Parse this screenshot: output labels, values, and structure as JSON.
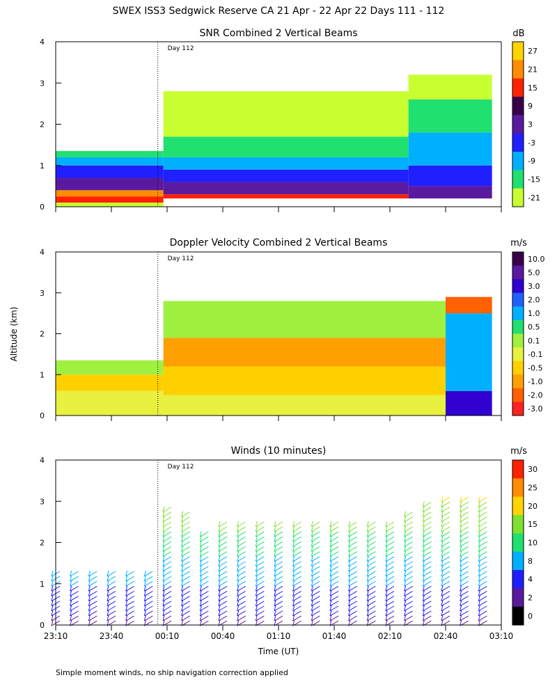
{
  "figure": {
    "title": "SWEX ISS3 Sedgwick Reserve CA  21 Apr - 22 Apr 22 Days 111 - 112",
    "shared_ylabel": "Altitude (km)",
    "shared_xlabel": "Time (UT)",
    "footnote": "Simple moment winds, no ship navigation correction applied",
    "day_marker": "Day 112"
  },
  "chart_data": [
    {
      "type": "heatmap",
      "title": "SNR Combined 2 Vertical Beams",
      "ylabel": "Altitude (km)",
      "ylim": [
        0,
        4
      ],
      "yticks": [
        "0",
        "1",
        "2",
        "3",
        "4"
      ],
      "x_time_range": [
        "23:10",
        "03:10"
      ],
      "colorbar": {
        "unit": "dB",
        "ticks": [
          "27",
          "21",
          "15",
          "9",
          "3",
          "-3",
          "-9",
          "-15",
          "-21"
        ],
        "colors": [
          "#ffd400",
          "#ff8c00",
          "#ff2000",
          "#3a004a",
          "#5a1aa0",
          "#2020ff",
          "#00b0ff",
          "#20e070",
          "#c8ff30"
        ]
      },
      "regions": [
        {
          "t_start": "23:10",
          "t_end": "00:08",
          "top_km": 1.35,
          "layers": [
            [
              "#c8ff30",
              0.0,
              0.1
            ],
            [
              "#ff2000",
              0.1,
              0.25
            ],
            [
              "#ff8c00",
              0.25,
              0.4
            ],
            [
              "#5a1aa0",
              0.4,
              0.7
            ],
            [
              "#2020ff",
              0.7,
              1.0
            ],
            [
              "#00b0ff",
              1.0,
              1.2
            ],
            [
              "#20e070",
              1.2,
              1.35
            ]
          ]
        },
        {
          "t_start": "00:08",
          "t_end": "02:20",
          "top_km": 2.8,
          "layers": [
            [
              "#ff2000",
              0.2,
              0.3
            ],
            [
              "#5a1aa0",
              0.3,
              0.6
            ],
            [
              "#2020ff",
              0.6,
              0.9
            ],
            [
              "#00b0ff",
              0.9,
              1.2
            ],
            [
              "#20e070",
              1.2,
              1.7
            ],
            [
              "#c8ff30",
              1.7,
              2.8
            ]
          ]
        },
        {
          "t_start": "02:20",
          "t_end": "03:05",
          "top_km": 3.2,
          "layers": [
            [
              "#5a1aa0",
              0.2,
              0.5
            ],
            [
              "#2020ff",
              0.5,
              1.0
            ],
            [
              "#00b0ff",
              1.0,
              1.8
            ],
            [
              "#20e070",
              1.8,
              2.6
            ],
            [
              "#c8ff30",
              2.6,
              3.2
            ]
          ]
        }
      ]
    },
    {
      "type": "heatmap",
      "title": "Doppler Velocity Combined 2 Vertical Beams",
      "ylabel": "Altitude (km)",
      "ylim": [
        0,
        4
      ],
      "yticks": [
        "0",
        "1",
        "2",
        "3",
        "4"
      ],
      "x_time_range": [
        "23:10",
        "03:10"
      ],
      "colorbar": {
        "unit": "m/s",
        "ticks": [
          "10.0",
          "5.0",
          "3.0",
          "2.0",
          "1.0",
          "0.5",
          "0.1",
          "-0.1",
          "-0.5",
          "-1.0",
          "-2.0",
          "-3.0"
        ],
        "colors": [
          "#3a004a",
          "#5a1aa0",
          "#3000d0",
          "#2060ff",
          "#00b0ff",
          "#20e070",
          "#a0f040",
          "#e8f040",
          "#ffd000",
          "#ffa000",
          "#ff6000",
          "#ff2020"
        ]
      },
      "regions": [
        {
          "t_start": "23:10",
          "t_end": "00:08",
          "top_km": 1.35,
          "layers": [
            [
              "#e8f040",
              0.0,
              0.6
            ],
            [
              "#ffd000",
              0.6,
              1.0
            ],
            [
              "#a0f040",
              1.0,
              1.35
            ]
          ]
        },
        {
          "t_start": "00:08",
          "t_end": "02:40",
          "top_km": 2.8,
          "layers": [
            [
              "#e8f040",
              0.0,
              0.5
            ],
            [
              "#ffd000",
              0.5,
              1.2
            ],
            [
              "#ffa000",
              1.2,
              1.9
            ],
            [
              "#a0f040",
              1.9,
              2.8
            ]
          ]
        },
        {
          "t_start": "02:40",
          "t_end": "03:05",
          "top_km": 2.9,
          "layers": [
            [
              "#3000d0",
              0.0,
              0.6
            ],
            [
              "#00b0ff",
              0.6,
              2.5
            ],
            [
              "#ff6000",
              2.5,
              2.9
            ]
          ]
        }
      ]
    },
    {
      "type": "scatter",
      "subtype": "wind-barbs",
      "title": "Winds (10 minutes)",
      "ylabel": "Altitude (km)",
      "ylim": [
        0,
        4
      ],
      "yticks": [
        "0",
        "1",
        "2",
        "3",
        "4"
      ],
      "xticks": [
        "23:10",
        "23:40",
        "00:10",
        "00:40",
        "01:10",
        "01:40",
        "02:10",
        "02:40",
        "03:10"
      ],
      "x_time_range": [
        "23:10",
        "03:10"
      ],
      "colorbar": {
        "unit": "m/s",
        "ticks": [
          "30",
          "25",
          "20",
          "15",
          "10",
          "8",
          "4",
          "2",
          "0"
        ],
        "colors": [
          "#ff2000",
          "#ff8c00",
          "#ffd400",
          "#80e030",
          "#20e070",
          "#00b0ff",
          "#2020ff",
          "#5a1aa0",
          "#000000"
        ]
      },
      "profiles": [
        {
          "time": "23:10",
          "top_km": 1.4
        },
        {
          "time": "23:20",
          "top_km": 1.4
        },
        {
          "time": "23:30",
          "top_km": 1.4
        },
        {
          "time": "23:40",
          "top_km": 1.4
        },
        {
          "time": "23:50",
          "top_km": 1.4
        },
        {
          "time": "00:00",
          "top_km": 1.4
        },
        {
          "time": "00:10",
          "top_km": 2.9
        },
        {
          "time": "00:20",
          "top_km": 2.8
        },
        {
          "time": "00:30",
          "top_km": 2.3
        },
        {
          "time": "00:40",
          "top_km": 2.6
        },
        {
          "time": "00:50",
          "top_km": 2.6
        },
        {
          "time": "01:00",
          "top_km": 2.6
        },
        {
          "time": "01:10",
          "top_km": 2.6
        },
        {
          "time": "01:20",
          "top_km": 2.6
        },
        {
          "time": "01:30",
          "top_km": 2.6
        },
        {
          "time": "01:40",
          "top_km": 2.6
        },
        {
          "time": "01:50",
          "top_km": 2.6
        },
        {
          "time": "02:00",
          "top_km": 2.6
        },
        {
          "time": "02:10",
          "top_km": 2.6
        },
        {
          "time": "02:20",
          "top_km": 2.8
        },
        {
          "time": "02:30",
          "top_km": 3.0
        },
        {
          "time": "02:40",
          "top_km": 3.1
        },
        {
          "time": "02:50",
          "top_km": 3.2
        },
        {
          "time": "03:00",
          "top_km": 3.2
        }
      ]
    }
  ]
}
